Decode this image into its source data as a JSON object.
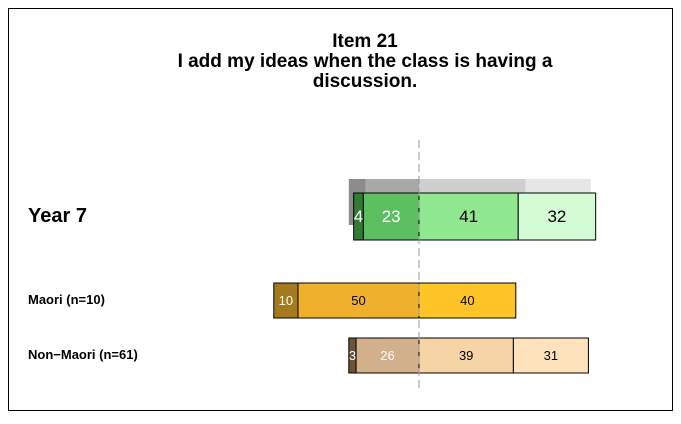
{
  "chart_data": {
    "type": "diverging_bar",
    "title": [
      "Item 21",
      "I add my ideas when the class is having a",
      "discussion."
    ],
    "left_segments": 2,
    "rows": [
      {
        "label": "Year 7",
        "values": [
          4,
          23,
          41,
          32
        ],
        "colors": [
          "#2e7d32",
          "#5cbf60",
          "#90e890",
          "#d4fcd4"
        ],
        "text_colors": [
          "#ffffff",
          "#ffffff",
          "#000000",
          "#000000"
        ],
        "reference_values": [
          7,
          22,
          44,
          27
        ],
        "reference_colors": [
          "#8c8c8c",
          "#a8a8a8",
          "#cfcfcf",
          "#e6e6e6"
        ]
      },
      {
        "label": "Maori (n=10)",
        "values": [
          10,
          50,
          40
        ],
        "colors": [
          "#a57a1c",
          "#efb02c",
          "#ffc526"
        ],
        "text_colors": [
          "#ffffff",
          "#000000",
          "#000000"
        ]
      },
      {
        "label": "Non−Maori (n=61)",
        "values": [
          3,
          26,
          39,
          31
        ],
        "colors": [
          "#6e5336",
          "#d2b08b",
          "#f7d4a5",
          "#fde2bc"
        ],
        "text_colors": [
          "#ffffff",
          "#ffffff",
          "#000000",
          "#000000"
        ]
      }
    ]
  }
}
